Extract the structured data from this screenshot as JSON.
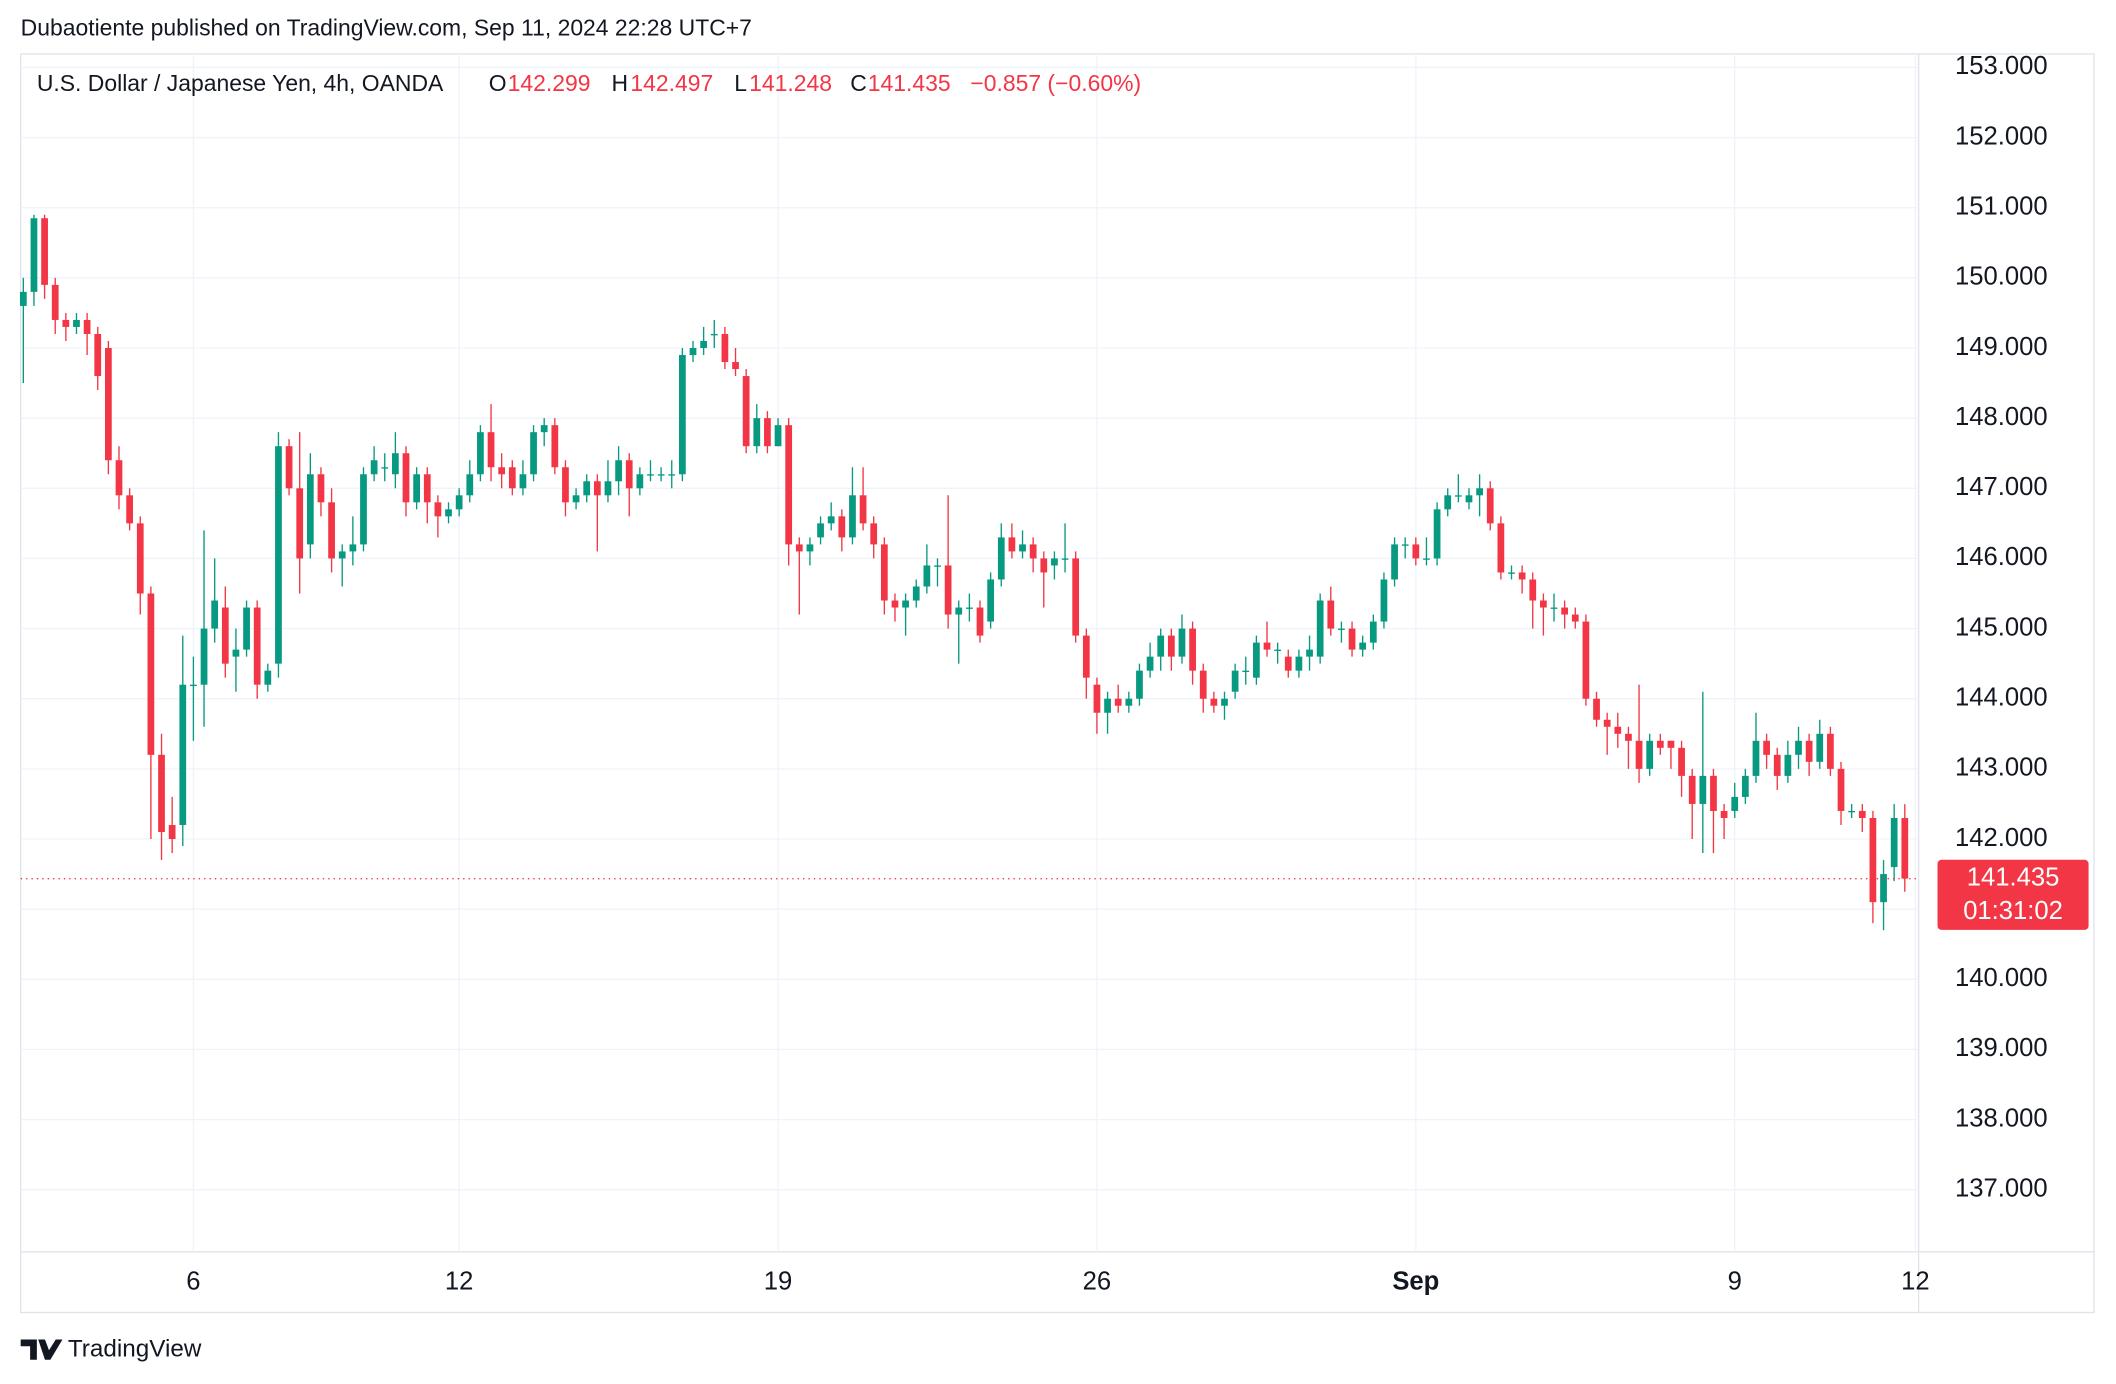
{
  "header": {
    "text": "Dubaotiente published on TradingView.com, Sep 11, 2024 22:28 UTC+7"
  },
  "chart_data": {
    "type": "candlestick",
    "legend": {
      "symbol": "U.S. Dollar / Japanese Yen, 4h, OANDA",
      "open_label": "O",
      "open": 142.299,
      "high_label": "H",
      "high": 142.497,
      "low_label": "L",
      "low": 141.248,
      "close_label": "C",
      "close": 141.435,
      "change": "−0.857 (−0.60%)",
      "color": "#f23645"
    },
    "up_color": "#089981",
    "down_color": "#f23645",
    "grid": true,
    "x": [
      0,
      1,
      2,
      3,
      4,
      5,
      6,
      7,
      8,
      9,
      10,
      11,
      12,
      13,
      14,
      15,
      16,
      17,
      18,
      19,
      20,
      21,
      22,
      23,
      24,
      25,
      26,
      27,
      28,
      29,
      30,
      31,
      32,
      33,
      34,
      35,
      36,
      37,
      38,
      39,
      40,
      41,
      42,
      43,
      44,
      45,
      46,
      47,
      48,
      49,
      50,
      51,
      52,
      53,
      54,
      55,
      56,
      57,
      58,
      59,
      60,
      61,
      62,
      63,
      64,
      65,
      66,
      67,
      68,
      69,
      70,
      71,
      72,
      73,
      74,
      75,
      76,
      77,
      78,
      79,
      80,
      81,
      82,
      83,
      84,
      85,
      86,
      87,
      88,
      89,
      90,
      91,
      92,
      93,
      94,
      95,
      96,
      97,
      98,
      99,
      100,
      101,
      102,
      103,
      104,
      105,
      106,
      107,
      108,
      109,
      110,
      111,
      112,
      113,
      114,
      115,
      116,
      117,
      118,
      119,
      120,
      121,
      122,
      123,
      124,
      125,
      126,
      127,
      128,
      129,
      130,
      131,
      132,
      133,
      134,
      135,
      136,
      137,
      138,
      139,
      140,
      141,
      142,
      143,
      144,
      145,
      146,
      147,
      148,
      149,
      150,
      151,
      152,
      153,
      154,
      155,
      156,
      157,
      158,
      159,
      160,
      161,
      162,
      163,
      164,
      165,
      166,
      167,
      168,
      169,
      170,
      171,
      172,
      173,
      174,
      175,
      176,
      177
    ],
    "open": [
      149.6,
      149.8,
      150.85,
      149.9,
      149.4,
      149.3,
      149.4,
      149.2,
      149.0,
      147.4,
      146.9,
      146.5,
      145.5,
      143.2,
      142.2,
      142.2,
      144.2,
      144.2,
      145.0,
      145.3,
      144.6,
      144.7,
      145.3,
      144.2,
      144.5,
      147.6,
      147.0,
      146.2,
      147.2,
      146.8,
      146.0,
      146.1,
      146.2,
      147.2,
      147.3,
      147.2,
      147.5,
      146.8,
      147.2,
      146.8,
      146.6,
      146.7,
      146.9,
      147.2,
      147.8,
      147.3,
      147.3,
      147.0,
      147.2,
      147.8,
      147.9,
      147.3,
      146.8,
      146.9,
      147.1,
      146.9,
      147.1,
      147.4,
      147.0,
      147.2,
      147.2,
      147.2,
      147.2,
      148.9,
      149.0,
      149.2,
      149.2,
      148.8,
      148.6,
      147.6,
      148.0,
      147.6,
      147.9,
      146.2,
      146.1,
      146.3,
      146.5,
      146.6,
      146.3,
      146.9,
      146.5,
      146.2,
      145.4,
      145.3,
      145.4,
      145.6,
      145.9,
      145.9,
      145.2,
      145.3,
      145.3,
      145.1,
      145.7,
      146.3,
      146.1,
      146.2,
      146.0,
      145.9,
      146.0,
      146.0,
      144.9,
      144.2,
      143.8,
      144.0,
      143.9,
      144.0,
      144.4,
      144.6,
      144.9,
      144.6,
      145.0,
      144.4,
      144.0,
      143.9,
      144.1,
      144.4,
      144.3,
      144.8,
      144.7,
      144.6,
      144.4,
      144.6,
      144.6,
      145.4,
      145.0,
      145.0,
      144.7,
      144.8,
      145.1,
      145.7,
      146.2,
      146.2,
      146.0,
      146.0,
      146.7,
      146.9,
      146.8,
      146.9,
      147.0,
      146.5,
      145.8,
      145.8,
      145.7,
      145.4,
      145.3,
      145.3,
      145.2,
      145.1,
      144.0,
      143.7,
      143.6,
      143.5,
      143.4,
      143.0,
      143.4,
      143.4,
      143.3,
      142.9,
      142.5,
      142.9,
      142.4,
      142.4,
      142.6,
      142.9,
      143.4,
      143.2,
      142.9,
      143.2,
      143.4,
      143.1,
      143.5,
      143.0,
      142.4,
      142.4,
      142.3,
      141.1,
      141.6,
      142.299
    ],
    "high": [
      150.0,
      150.9,
      150.9,
      150.0,
      149.5,
      149.5,
      149.5,
      149.3,
      149.1,
      147.6,
      147.0,
      146.6,
      145.6,
      143.5,
      142.6,
      144.9,
      144.6,
      146.4,
      146.0,
      145.6,
      145.0,
      145.4,
      145.4,
      144.5,
      147.8,
      147.7,
      147.8,
      147.5,
      147.3,
      147.0,
      146.2,
      146.6,
      147.3,
      147.6,
      147.5,
      147.8,
      147.6,
      147.3,
      147.3,
      146.9,
      146.8,
      147.0,
      147.4,
      147.9,
      148.2,
      147.5,
      147.4,
      147.4,
      147.9,
      148.0,
      148.0,
      147.4,
      147.0,
      147.2,
      147.2,
      147.4,
      147.6,
      147.5,
      147.3,
      147.4,
      147.3,
      147.4,
      149.0,
      149.1,
      149.3,
      149.4,
      149.3,
      149.0,
      148.7,
      148.2,
      148.1,
      148.0,
      148.0,
      146.3,
      146.3,
      146.6,
      146.8,
      146.7,
      147.3,
      147.3,
      146.6,
      146.3,
      145.5,
      145.5,
      145.7,
      146.2,
      146.0,
      146.9,
      145.4,
      145.5,
      145.4,
      145.8,
      146.5,
      146.5,
      146.4,
      146.3,
      146.1,
      146.1,
      146.5,
      146.1,
      145.0,
      144.3,
      144.1,
      144.2,
      144.1,
      144.5,
      144.8,
      145.0,
      145.0,
      145.2,
      145.1,
      144.5,
      144.1,
      144.1,
      144.5,
      144.6,
      144.9,
      145.1,
      144.8,
      144.7,
      144.7,
      144.9,
      145.5,
      145.6,
      145.1,
      145.1,
      144.9,
      145.2,
      145.8,
      146.3,
      146.3,
      146.3,
      146.3,
      146.8,
      147.0,
      147.2,
      147.0,
      147.2,
      147.1,
      146.6,
      145.9,
      145.9,
      145.8,
      145.5,
      145.5,
      145.4,
      145.3,
      145.2,
      144.1,
      143.8,
      143.8,
      143.6,
      144.2,
      143.5,
      143.5,
      143.4,
      143.4,
      143.0,
      144.1,
      143.0,
      142.5,
      142.8,
      143.0,
      143.8,
      143.5,
      143.3,
      143.4,
      143.6,
      143.5,
      143.7,
      143.6,
      143.1,
      142.5,
      142.5,
      142.4,
      141.7,
      142.5,
      142.497
    ],
    "low": [
      148.5,
      149.6,
      149.7,
      149.2,
      149.1,
      149.2,
      148.9,
      148.4,
      147.2,
      146.7,
      146.4,
      145.2,
      142.0,
      141.7,
      141.8,
      141.9,
      143.4,
      143.6,
      144.8,
      144.3,
      144.1,
      144.6,
      144.0,
      144.1,
      144.3,
      146.9,
      145.5,
      146.0,
      146.6,
      145.8,
      145.6,
      145.9,
      146.1,
      147.1,
      147.1,
      147.0,
      146.6,
      146.7,
      146.5,
      146.3,
      146.5,
      146.6,
      146.8,
      147.1,
      147.1,
      147.0,
      146.9,
      146.9,
      147.1,
      147.6,
      147.2,
      146.6,
      146.7,
      146.8,
      146.1,
      146.8,
      146.9,
      146.6,
      146.9,
      147.1,
      147.1,
      147.0,
      147.1,
      148.8,
      148.9,
      149.0,
      148.7,
      148.6,
      147.5,
      147.5,
      147.5,
      147.6,
      145.9,
      145.2,
      145.9,
      146.2,
      146.4,
      146.1,
      146.2,
      146.4,
      146.0,
      145.2,
      145.1,
      144.9,
      145.3,
      145.5,
      145.6,
      145.0,
      144.5,
      145.1,
      144.8,
      145.0,
      145.6,
      146.0,
      146.0,
      145.8,
      145.3,
      145.7,
      145.8,
      144.8,
      144.0,
      143.5,
      143.5,
      143.8,
      143.8,
      143.9,
      144.3,
      144.4,
      144.4,
      144.5,
      144.2,
      143.8,
      143.8,
      143.7,
      144.0,
      144.2,
      144.2,
      144.6,
      144.5,
      144.3,
      144.3,
      144.4,
      144.5,
      144.9,
      144.8,
      144.6,
      144.6,
      144.7,
      145.0,
      145.6,
      146.0,
      145.9,
      145.9,
      145.9,
      146.6,
      146.8,
      146.7,
      146.6,
      146.4,
      145.7,
      145.7,
      145.5,
      145.0,
      144.9,
      145.1,
      145.0,
      145.0,
      143.9,
      143.6,
      143.2,
      143.3,
      143.0,
      142.8,
      142.9,
      143.2,
      143.0,
      142.6,
      142.0,
      141.8,
      141.8,
      142.0,
      142.3,
      142.5,
      142.8,
      143.0,
      142.7,
      142.8,
      143.0,
      142.9,
      143.0,
      142.9,
      142.2,
      142.3,
      142.1,
      140.8,
      140.7,
      141.4,
      141.248
    ],
    "close": [
      149.8,
      150.85,
      149.9,
      149.4,
      149.3,
      149.4,
      149.2,
      148.6,
      147.4,
      146.9,
      146.5,
      145.5,
      143.2,
      142.1,
      142.0,
      144.2,
      144.2,
      145.0,
      145.4,
      144.5,
      144.7,
      145.3,
      144.2,
      144.4,
      147.6,
      147.0,
      146.0,
      147.2,
      146.8,
      146.0,
      146.1,
      146.2,
      147.2,
      147.4,
      147.3,
      147.5,
      146.8,
      147.2,
      146.8,
      146.6,
      146.7,
      146.9,
      147.2,
      147.8,
      147.3,
      147.2,
      147.0,
      147.2,
      147.8,
      147.9,
      147.3,
      146.8,
      146.9,
      147.1,
      146.9,
      147.1,
      147.4,
      147.0,
      147.2,
      147.2,
      147.2,
      147.2,
      148.9,
      149.0,
      149.1,
      149.2,
      148.8,
      148.7,
      147.6,
      148.0,
      147.6,
      147.9,
      146.2,
      146.1,
      146.2,
      146.5,
      146.6,
      146.3,
      146.9,
      146.5,
      146.2,
      145.4,
      145.3,
      145.4,
      145.6,
      145.9,
      145.9,
      145.2,
      145.3,
      145.3,
      144.9,
      145.7,
      146.3,
      146.1,
      146.2,
      146.0,
      145.8,
      146.0,
      146.0,
      144.9,
      144.3,
      143.8,
      144.0,
      143.9,
      144.0,
      144.4,
      144.6,
      144.9,
      144.6,
      145.0,
      144.4,
      144.0,
      143.9,
      144.0,
      144.4,
      144.4,
      144.8,
      144.7,
      144.7,
      144.4,
      144.6,
      144.7,
      145.4,
      145.0,
      145.0,
      144.7,
      144.8,
      145.1,
      145.7,
      146.2,
      146.2,
      146.0,
      146.0,
      146.7,
      146.9,
      146.9,
      146.9,
      147.0,
      146.5,
      145.8,
      145.8,
      145.7,
      145.4,
      145.3,
      145.3,
      145.2,
      145.1,
      144.0,
      143.7,
      143.6,
      143.5,
      143.4,
      143.0,
      143.4,
      143.3,
      143.3,
      142.9,
      142.5,
      142.9,
      142.4,
      142.3,
      142.6,
      142.9,
      143.4,
      143.2,
      142.9,
      143.2,
      143.4,
      143.1,
      143.5,
      143.0,
      142.4,
      142.4,
      142.3,
      141.1,
      141.5,
      142.3,
      141.435
    ],
    "xlim": [
      -0.25,
      178.3
    ],
    "xticks": [
      {
        "value": 16,
        "label": "6"
      },
      {
        "value": 41,
        "label": "12"
      },
      {
        "value": 71,
        "label": "19"
      },
      {
        "value": 101,
        "label": "26"
      },
      {
        "value": 131,
        "label": "Sep",
        "bold": true
      },
      {
        "value": 161,
        "label": "9"
      },
      {
        "value": 178,
        "label": "12"
      }
    ],
    "ylim": [
      136.115,
      153.192
    ],
    "yticks": [
      {
        "value": 137,
        "label": "137.000"
      },
      {
        "value": 138,
        "label": "138.000"
      },
      {
        "value": 139,
        "label": "139.000"
      },
      {
        "value": 140,
        "label": "140.000"
      },
      {
        "value": 141,
        "label": "141.000"
      },
      {
        "value": 142,
        "label": "142.000"
      },
      {
        "value": 143,
        "label": "143.000"
      },
      {
        "value": 144,
        "label": "144.000"
      },
      {
        "value": 145,
        "label": "145.000"
      },
      {
        "value": 146,
        "label": "146.000"
      },
      {
        "value": 147,
        "label": "147.000"
      },
      {
        "value": 148,
        "label": "148.000"
      },
      {
        "value": 149,
        "label": "149.000"
      },
      {
        "value": 150,
        "label": "150.000"
      },
      {
        "value": 151,
        "label": "151.000"
      },
      {
        "value": 152,
        "label": "152.000"
      },
      {
        "value": 153,
        "label": "153.000"
      }
    ],
    "last_price": 141.435,
    "countdown": "01:31:02"
  },
  "footer": {
    "brand": "TradingView"
  }
}
